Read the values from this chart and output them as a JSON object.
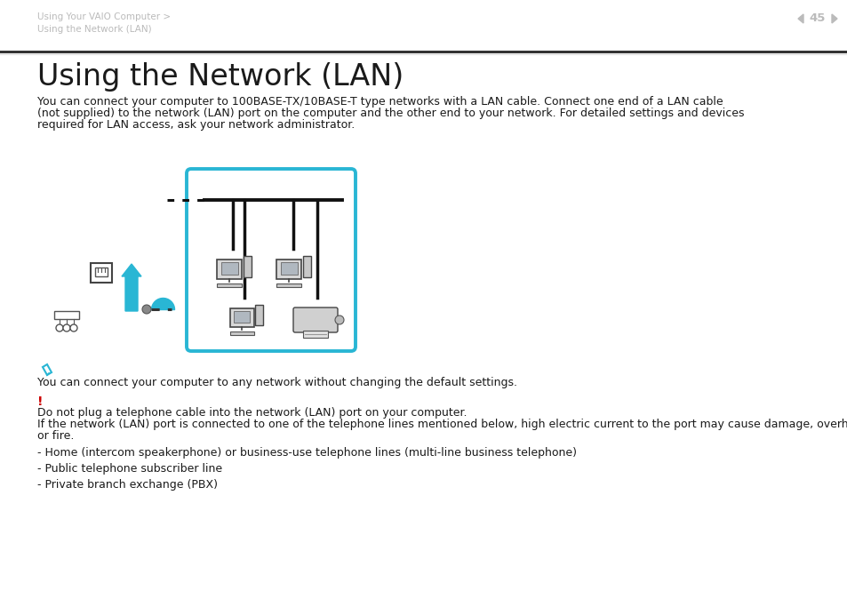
{
  "bg_color": "#ffffff",
  "header_text1": "Using Your VAIO Computer >",
  "header_text2": "Using the Network (LAN)",
  "page_number": "45",
  "title": "Using the Network (LAN)",
  "intro_line1": "You can connect your computer to 100BASE-TX/10BASE-T type networks with a LAN cable. Connect one end of a LAN cable",
  "intro_line2": "(not supplied) to the network (LAN) port on the computer and the other end to your network. For detailed settings and devices",
  "intro_line3": "required for LAN access, ask your network administrator.",
  "note_text": "You can connect your computer to any network without changing the default settings.",
  "warning_line1": "Do not plug a telephone cable into the network (LAN) port on your computer.",
  "warning_line2a": "If the network (LAN) port is connected to one of the telephone lines mentioned below, high electric current to the port may cause damage, overheating,",
  "warning_line2b": "or fire.",
  "bullet1": "- Home (intercom speakerphone) or business-use telephone lines (multi-line business telephone)",
  "bullet2": "- Public telephone subscriber line",
  "bullet3": "- Private branch exchange (PBX)",
  "cyan_color": "#29b6d4",
  "red_color": "#cc0000",
  "dark_text": "#1a1a1a",
  "header_color": "#bbbbbb",
  "body_font_size": 9.0,
  "title_font_size": 24
}
